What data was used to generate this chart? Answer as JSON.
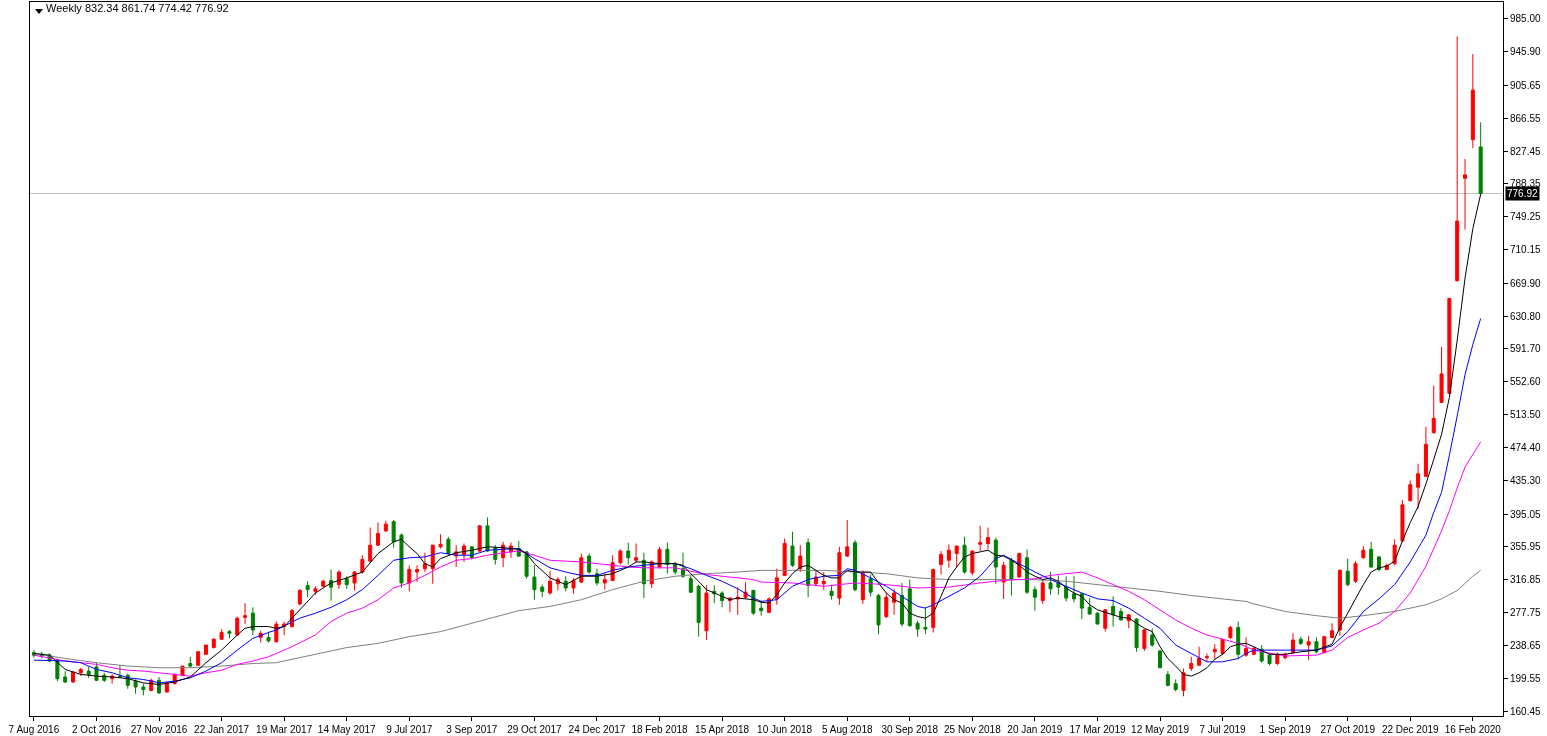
{
  "chart_data": {
    "type": "candlestick",
    "title": "Weekly 832.34 861.74 774.42 776.92",
    "x": [
      "2016-08-07",
      "2016-08-14",
      "2016-08-21",
      "2016-08-28",
      "2016-09-04",
      "2016-09-11",
      "2016-09-18",
      "2016-09-25",
      "2016-10-02",
      "2016-10-09",
      "2016-10-16",
      "2016-10-23",
      "2016-10-30",
      "2016-11-06",
      "2016-11-13",
      "2016-11-20",
      "2016-11-27",
      "2016-12-04",
      "2016-12-11",
      "2016-12-18",
      "2016-12-25",
      "2017-01-01",
      "2017-01-08",
      "2017-01-15",
      "2017-01-22",
      "2017-01-29",
      "2017-02-05",
      "2017-02-12",
      "2017-02-19",
      "2017-02-26",
      "2017-03-05",
      "2017-03-12",
      "2017-03-19",
      "2017-03-26",
      "2017-04-02",
      "2017-04-09",
      "2017-04-16",
      "2017-04-23",
      "2017-04-30",
      "2017-05-07",
      "2017-05-14",
      "2017-05-21",
      "2017-05-28",
      "2017-06-04",
      "2017-06-11",
      "2017-06-18",
      "2017-06-25",
      "2017-07-02",
      "2017-07-09",
      "2017-07-16",
      "2017-07-23",
      "2017-07-30",
      "2017-08-06",
      "2017-08-13",
      "2017-08-20",
      "2017-08-27",
      "2017-09-03",
      "2017-09-10",
      "2017-09-17",
      "2017-09-24",
      "2017-10-01",
      "2017-10-08",
      "2017-10-15",
      "2017-10-22",
      "2017-10-29",
      "2017-11-05",
      "2017-11-12",
      "2017-11-19",
      "2017-11-26",
      "2017-12-03",
      "2017-12-10",
      "2017-12-17",
      "2017-12-24",
      "2017-12-31",
      "2018-01-07",
      "2018-01-14",
      "2018-01-21",
      "2018-01-28",
      "2018-02-04",
      "2018-02-11",
      "2018-02-18",
      "2018-02-25",
      "2018-03-04",
      "2018-03-11",
      "2018-03-18",
      "2018-03-25",
      "2018-04-01",
      "2018-04-08",
      "2018-04-15",
      "2018-04-22",
      "2018-04-29",
      "2018-05-06",
      "2018-05-13",
      "2018-05-20",
      "2018-05-27",
      "2018-06-03",
      "2018-06-10",
      "2018-06-17",
      "2018-06-24",
      "2018-07-01",
      "2018-07-08",
      "2018-07-15",
      "2018-07-22",
      "2018-07-29",
      "2018-08-05",
      "2018-08-12",
      "2018-08-19",
      "2018-08-26",
      "2018-09-02",
      "2018-09-09",
      "2018-09-16",
      "2018-09-23",
      "2018-09-30",
      "2018-10-07",
      "2018-10-14",
      "2018-10-21",
      "2018-10-28",
      "2018-11-04",
      "2018-11-11",
      "2018-11-18",
      "2018-11-25",
      "2018-12-02",
      "2018-12-09",
      "2018-12-16",
      "2018-12-23",
      "2018-12-30",
      "2019-01-06",
      "2019-01-13",
      "2019-01-20",
      "2019-01-27",
      "2019-02-03",
      "2019-02-10",
      "2019-02-17",
      "2019-02-24",
      "2019-03-03",
      "2019-03-10",
      "2019-03-17",
      "2019-03-24",
      "2019-03-31",
      "2019-04-07",
      "2019-04-14",
      "2019-04-21",
      "2019-04-28",
      "2019-05-05",
      "2019-05-12",
      "2019-05-19",
      "2019-05-26",
      "2019-06-02",
      "2019-06-09",
      "2019-06-16",
      "2019-06-23",
      "2019-06-30",
      "2019-07-07",
      "2019-07-14",
      "2019-07-21",
      "2019-07-28",
      "2019-08-04",
      "2019-08-11",
      "2019-08-18",
      "2019-08-25",
      "2019-09-01",
      "2019-09-08",
      "2019-09-15",
      "2019-09-22",
      "2019-09-29",
      "2019-10-06",
      "2019-10-13",
      "2019-10-20",
      "2019-10-27",
      "2019-11-03",
      "2019-11-10",
      "2019-11-17",
      "2019-11-24",
      "2019-12-01",
      "2019-12-08",
      "2019-12-15",
      "2019-12-22",
      "2019-12-29",
      "2020-01-05",
      "2020-01-12",
      "2020-01-19",
      "2020-01-26",
      "2020-02-02",
      "2020-02-09",
      "2020-02-16",
      "2020-02-23"
    ],
    "ohlc": [
      [
        230,
        233,
        224,
        227
      ],
      [
        228,
        231,
        223,
        226
      ],
      [
        227,
        229,
        219,
        220
      ],
      [
        221,
        223,
        196,
        199
      ],
      [
        201,
        208,
        194,
        195
      ],
      [
        195,
        207,
        194,
        207
      ],
      [
        206,
        212,
        202,
        210
      ],
      [
        208,
        213,
        200,
        204
      ],
      [
        213,
        218,
        196,
        197
      ],
      [
        203,
        206,
        195,
        197
      ],
      [
        199,
        204,
        193,
        202
      ],
      [
        202,
        215,
        200,
        201
      ],
      [
        203,
        205,
        187,
        191
      ],
      [
        196,
        198,
        181,
        189
      ],
      [
        189,
        193,
        179,
        186
      ],
      [
        185,
        199,
        184,
        197
      ],
      [
        197,
        201,
        181,
        182
      ],
      [
        183,
        195,
        183,
        194
      ],
      [
        193,
        205,
        192,
        204
      ],
      [
        203,
        214,
        202,
        214
      ],
      [
        217,
        225,
        212,
        214
      ],
      [
        215,
        232,
        214,
        231
      ],
      [
        228,
        239,
        227,
        239
      ],
      [
        236,
        247,
        235,
        246
      ],
      [
        246,
        258,
        245,
        254
      ],
      [
        255,
        257,
        247,
        253
      ],
      [
        251,
        273,
        250,
        271
      ],
      [
        272,
        289,
        264,
        274
      ],
      [
        277,
        284,
        251,
        257
      ],
      [
        248,
        256,
        242,
        253
      ],
      [
        248,
        255,
        242,
        244
      ],
      [
        243,
        267,
        242,
        264
      ],
      [
        261,
        267,
        251,
        264
      ],
      [
        261,
        282,
        260,
        280
      ],
      [
        288,
        306,
        286,
        304
      ],
      [
        310,
        315,
        296,
        305
      ],
      [
        303,
        309,
        299,
        306
      ],
      [
        309,
        317,
        308,
        315
      ],
      [
        316,
        329,
        292,
        308
      ],
      [
        311,
        328,
        306,
        326
      ],
      [
        318,
        321,
        306,
        311
      ],
      [
        313,
        327,
        304,
        326
      ],
      [
        326,
        346,
        324,
        341
      ],
      [
        339,
        379,
        337,
        358
      ],
      [
        358,
        385,
        357,
        372
      ],
      [
        375,
        387,
        374,
        383
      ],
      [
        386,
        388,
        355,
        362
      ],
      [
        370,
        372,
        307,
        313
      ],
      [
        313,
        334,
        303,
        329
      ],
      [
        326,
        334,
        314,
        329
      ],
      [
        330,
        349,
        326,
        336
      ],
      [
        330,
        358,
        312,
        358
      ],
      [
        356,
        371,
        354,
        359
      ],
      [
        365,
        368,
        347,
        348
      ],
      [
        345,
        358,
        332,
        350
      ],
      [
        347,
        360,
        338,
        357
      ],
      [
        356,
        357,
        341,
        343
      ],
      [
        351,
        382,
        350,
        381
      ],
      [
        381,
        391,
        350,
        351
      ],
      [
        355,
        358,
        335,
        341
      ],
      [
        343,
        362,
        332,
        358
      ],
      [
        350,
        361,
        343,
        357
      ],
      [
        354,
        363,
        344,
        345
      ],
      [
        350,
        351,
        318,
        321
      ],
      [
        320,
        334,
        293,
        305
      ],
      [
        308,
        311,
        296,
        303
      ],
      [
        301,
        327,
        299,
        315
      ],
      [
        312,
        320,
        304,
        317
      ],
      [
        315,
        321,
        303,
        307
      ],
      [
        307,
        319,
        300,
        316
      ],
      [
        314,
        348,
        313,
        343
      ],
      [
        345,
        348,
        324,
        326
      ],
      [
        324,
        330,
        310,
        313
      ],
      [
        313,
        324,
        305,
        317
      ],
      [
        316,
        346,
        315,
        337
      ],
      [
        337,
        353,
        335,
        351
      ],
      [
        351,
        361,
        335,
        343
      ],
      [
        340,
        360,
        337,
        343
      ],
      [
        340,
        349,
        295,
        312
      ],
      [
        312,
        340,
        307,
        338
      ],
      [
        332,
        356,
        330,
        353
      ],
      [
        353,
        361,
        324,
        335
      ],
      [
        335,
        338,
        323,
        326
      ],
      [
        330,
        349,
        319,
        321
      ],
      [
        318,
        322,
        301,
        302
      ],
      [
        309,
        311,
        249,
        266
      ],
      [
        256,
        310,
        245,
        301
      ],
      [
        303,
        310,
        289,
        300
      ],
      [
        301,
        303,
        284,
        292
      ],
      [
        292,
        296,
        278,
        295
      ],
      [
        294,
        308,
        275,
        296
      ],
      [
        296,
        314,
        294,
        302
      ],
      [
        304,
        305,
        275,
        277
      ],
      [
        283,
        292,
        274,
        280
      ],
      [
        278,
        296,
        277,
        294
      ],
      [
        294,
        330,
        287,
        319
      ],
      [
        322,
        366,
        321,
        360
      ],
      [
        357,
        374,
        332,
        334
      ],
      [
        330,
        358,
        326,
        345
      ],
      [
        361,
        366,
        296,
        310
      ],
      [
        312,
        328,
        309,
        320
      ],
      [
        312,
        326,
        305,
        315
      ],
      [
        303,
        311,
        293,
        298
      ],
      [
        295,
        356,
        287,
        349
      ],
      [
        345,
        388,
        344,
        356
      ],
      [
        361,
        364,
        303,
        305
      ],
      [
        293,
        328,
        288,
        324
      ],
      [
        318,
        323,
        297,
        302
      ],
      [
        298,
        300,
        252,
        263
      ],
      [
        273,
        301,
        271,
        296
      ],
      [
        290,
        306,
        275,
        301
      ],
      [
        298,
        313,
        261,
        264
      ],
      [
        306,
        317,
        261,
        262
      ],
      [
        265,
        268,
        249,
        258
      ],
      [
        260,
        284,
        252,
        258
      ],
      [
        260,
        330,
        254,
        329
      ],
      [
        335,
        351,
        323,
        347
      ],
      [
        340,
        359,
        331,
        352
      ],
      [
        348,
        357,
        332,
        357
      ],
      [
        358,
        368,
        324,
        326
      ],
      [
        325,
        352,
        322,
        351
      ],
      [
        359,
        381,
        351,
        361
      ],
      [
        360,
        379,
        353,
        367
      ],
      [
        364,
        367,
        312,
        332
      ],
      [
        314,
        338,
        294,
        334
      ],
      [
        340,
        343,
        298,
        317
      ],
      [
        320,
        349,
        319,
        348
      ],
      [
        343,
        353,
        300,
        302
      ],
      [
        305,
        309,
        280,
        296
      ],
      [
        292,
        317,
        288,
        313
      ],
      [
        313,
        326,
        299,
        306
      ],
      [
        313,
        322,
        299,
        308
      ],
      [
        308,
        321,
        291,
        295
      ],
      [
        300,
        321,
        290,
        294
      ],
      [
        300,
        301,
        270,
        283
      ],
      [
        284,
        295,
        275,
        276
      ],
      [
        277,
        278,
        264,
        264
      ],
      [
        259,
        282,
        255,
        281
      ],
      [
        285,
        297,
        261,
        275
      ],
      [
        279,
        283,
        268,
        269
      ],
      [
        268,
        276,
        259,
        275
      ],
      [
        270,
        271,
        231,
        236
      ],
      [
        235,
        258,
        232,
        257
      ],
      [
        251,
        259,
        237,
        239
      ],
      [
        232,
        233,
        212,
        212
      ],
      [
        204,
        208,
        190,
        191
      ],
      [
        193,
        198,
        184,
        186
      ],
      [
        185,
        211,
        178,
        206
      ],
      [
        211,
        225,
        208,
        217
      ],
      [
        215,
        237,
        214,
        223
      ],
      [
        224,
        229,
        220,
        225
      ],
      [
        231,
        240,
        222,
        234
      ],
      [
        229,
        246,
        227,
        246
      ],
      [
        248,
        262,
        246,
        260
      ],
      [
        260,
        267,
        222,
        228
      ],
      [
        227,
        248,
        225,
        235
      ],
      [
        228,
        237,
        227,
        235
      ],
      [
        234,
        239,
        218,
        220
      ],
      [
        227,
        229,
        215,
        217
      ],
      [
        217,
        230,
        215,
        228
      ],
      [
        224,
        230,
        222,
        228
      ],
      [
        230,
        253,
        229,
        245
      ],
      [
        246,
        249,
        239,
        241
      ],
      [
        239,
        250,
        221,
        243
      ],
      [
        243,
        248,
        229,
        231
      ],
      [
        230,
        250,
        229,
        249
      ],
      [
        248,
        265,
        247,
        256
      ],
      [
        257,
        329,
        250,
        328
      ],
      [
        327,
        342,
        309,
        311
      ],
      [
        315,
        339,
        313,
        336
      ],
      [
        343,
        357,
        342,
        352
      ],
      [
        353,
        362,
        331,
        332
      ],
      [
        344,
        345,
        327,
        329
      ],
      [
        329,
        336,
        328,
        334
      ],
      [
        336,
        365,
        334,
        358
      ],
      [
        363,
        412,
        362,
        406
      ],
      [
        411,
        435,
        410,
        430
      ],
      [
        427,
        455,
        401,
        443
      ],
      [
        440,
        499,
        439,
        478
      ],
      [
        492,
        548,
        491,
        509
      ],
      [
        528,
        594,
        527,
        562
      ],
      [
        539,
        652,
        538,
        652
      ],
      [
        673,
        964,
        672,
        744
      ],
      [
        795,
        818,
        734,
        799
      ],
      [
        841,
        943,
        831,
        900
      ],
      [
        832.34,
        861.74,
        774.42,
        776.92
      ]
    ],
    "colors": [
      "#008000",
      "#008000",
      "#008000",
      "#008000",
      "#008000",
      "#ff0000",
      "#ff0000",
      "#008000",
      "#008000",
      "#008000",
      "#ff0000",
      "#008000",
      "#008000",
      "#008000",
      "#008000",
      "#ff0000",
      "#008000",
      "#ff0000",
      "#ff0000",
      "#ff0000",
      "#008000",
      "#ff0000",
      "#ff0000",
      "#ff0000",
      "#ff0000",
      "#008000",
      "#ff0000",
      "#ff0000",
      "#008000",
      "#ff0000",
      "#008000",
      "#ff0000",
      "#ff0000",
      "#ff0000",
      "#ff0000",
      "#008000",
      "#ff0000",
      "#ff0000",
      "#008000",
      "#ff0000",
      "#008000",
      "#ff0000",
      "#ff0000",
      "#ff0000",
      "#ff0000",
      "#ff0000",
      "#008000",
      "#008000",
      "#ff0000",
      "#ff0000",
      "#ff0000",
      "#ff0000",
      "#ff0000",
      "#008000",
      "#ff0000",
      "#ff0000",
      "#008000",
      "#ff0000",
      "#008000",
      "#008000",
      "#ff0000",
      "#ff0000",
      "#008000",
      "#008000",
      "#008000",
      "#008000",
      "#ff0000",
      "#ff0000",
      "#008000",
      "#ff0000",
      "#ff0000",
      "#008000",
      "#008000",
      "#ff0000",
      "#ff0000",
      "#ff0000",
      "#008000",
      "#ff0000",
      "#008000",
      "#ff0000",
      "#ff0000",
      "#008000",
      "#008000",
      "#008000",
      "#008000",
      "#008000",
      "#ff0000",
      "#008000",
      "#008000",
      "#ff0000",
      "#ff0000",
      "#ff0000",
      "#008000",
      "#008000",
      "#ff0000",
      "#ff0000",
      "#ff0000",
      "#008000",
      "#ff0000",
      "#008000",
      "#ff0000",
      "#ff0000",
      "#008000",
      "#ff0000",
      "#ff0000",
      "#008000",
      "#ff0000",
      "#008000",
      "#008000",
      "#ff0000",
      "#ff0000",
      "#008000",
      "#008000",
      "#008000",
      "#008000",
      "#ff0000",
      "#ff0000",
      "#ff0000",
      "#ff0000",
      "#008000",
      "#ff0000",
      "#ff0000",
      "#ff0000",
      "#008000",
      "#ff0000",
      "#008000",
      "#ff0000",
      "#008000",
      "#008000",
      "#ff0000",
      "#008000",
      "#008000",
      "#008000",
      "#008000",
      "#008000",
      "#008000",
      "#008000",
      "#ff0000",
      "#008000",
      "#008000",
      "#ff0000",
      "#008000",
      "#ff0000",
      "#008000",
      "#008000",
      "#008000",
      "#008000",
      "#ff0000",
      "#ff0000",
      "#ff0000",
      "#ff0000",
      "#ff0000",
      "#ff0000",
      "#ff0000",
      "#008000",
      "#ff0000",
      "#ff0000",
      "#008000",
      "#008000",
      "#ff0000",
      "#ff0000",
      "#ff0000",
      "#008000",
      "#ff0000",
      "#008000",
      "#ff0000",
      "#ff0000",
      "#ff0000",
      "#008000",
      "#ff0000",
      "#ff0000",
      "#008000",
      "#008000",
      "#ff0000",
      "#ff0000",
      "#ff0000",
      "#ff0000",
      "#ff0000",
      "#ff0000",
      "#ff0000",
      "#ff0000",
      "#ff0000",
      "#ff0000",
      "#ff0000",
      "#ff0000",
      "#008000"
    ],
    "series": [
      {
        "type": "line",
        "color": "#808080",
        "x": [
          "2016-08-07",
          "2016-09-04",
          "2016-10-02",
          "2016-10-30",
          "2016-11-27",
          "2016-12-25",
          "2017-01-22",
          "2017-02-19",
          "2017-03-12",
          "2017-04-09",
          "2017-05-14",
          "2017-06-11",
          "2017-07-09",
          "2017-08-06",
          "2017-09-03",
          "2017-10-15",
          "2017-11-12",
          "2017-12-10",
          "2018-01-07",
          "2018-02-04",
          "2018-03-04",
          "2018-04-01",
          "2018-04-29",
          "2018-05-20",
          "2018-06-17",
          "2018-07-15",
          "2018-08-12",
          "2018-09-09",
          "2018-10-07",
          "2018-11-04",
          "2018-12-02",
          "2018-12-23",
          "2019-01-20",
          "2019-02-17",
          "2019-03-17",
          "2019-04-14",
          "2019-05-12",
          "2019-06-09",
          "2019-07-07",
          "2019-07-28",
          "2019-08-04",
          "2019-09-01",
          "2019-09-29",
          "2019-10-20",
          "2019-11-10",
          "2019-12-08",
          "2020-01-05",
          "2020-01-19",
          "2020-02-02",
          "2020-02-16",
          "2020-02-23"
        ],
        "values": [
          229,
          223,
          218,
          214,
          212,
          212,
          214,
          217,
          218,
          226,
          236,
          241,
          249,
          255,
          265,
          280,
          285,
          293,
          305,
          315,
          321,
          324,
          326,
          328,
          328,
          328,
          326,
          324,
          319,
          317,
          317,
          317,
          317,
          315,
          311,
          307,
          303,
          298,
          294,
          291,
          288,
          279,
          274,
          271,
          274,
          279,
          287,
          294,
          304,
          321,
          328
        ]
      },
      {
        "type": "line",
        "color": "#ff00ff",
        "x": [
          "2016-08-07",
          "2016-09-04",
          "2016-09-18",
          "2016-10-02",
          "2016-10-16",
          "2016-10-30",
          "2016-11-13",
          "2016-11-27",
          "2016-12-11",
          "2016-12-25",
          "2017-01-08",
          "2017-01-22",
          "2017-02-05",
          "2017-02-19",
          "2017-03-05",
          "2017-03-12",
          "2017-03-26",
          "2017-04-16",
          "2017-04-30",
          "2017-05-14",
          "2017-05-28",
          "2017-06-11",
          "2017-06-25",
          "2017-07-09",
          "2017-07-23",
          "2017-08-06",
          "2017-08-20",
          "2017-09-03",
          "2017-09-17",
          "2017-10-01",
          "2017-10-15",
          "2017-10-29",
          "2017-11-12",
          "2017-11-26",
          "2017-12-10",
          "2017-12-24",
          "2018-01-07",
          "2018-01-21",
          "2018-02-04",
          "2018-02-18",
          "2018-03-04",
          "2018-03-18",
          "2018-04-01",
          "2018-04-15",
          "2018-04-29",
          "2018-05-13",
          "2018-05-20",
          "2018-06-17",
          "2018-07-15",
          "2018-08-12",
          "2018-09-09",
          "2018-10-07",
          "2018-11-04",
          "2018-12-02",
          "2018-12-23",
          "2019-01-06",
          "2019-01-20",
          "2019-02-03",
          "2019-02-17",
          "2019-03-03",
          "2019-03-17",
          "2019-03-31",
          "2019-04-14",
          "2019-04-28",
          "2019-05-12",
          "2019-05-26",
          "2019-06-09",
          "2019-06-23",
          "2019-07-07",
          "2019-07-21",
          "2019-07-28",
          "2019-08-04",
          "2019-09-01",
          "2019-09-29",
          "2019-10-13",
          "2019-10-27",
          "2019-11-10",
          "2019-11-24",
          "2019-12-08",
          "2019-12-22",
          "2020-01-05",
          "2020-01-19",
          "2020-01-26",
          "2020-02-02",
          "2020-02-09",
          "2020-02-16",
          "2020-02-23"
        ],
        "values": [
          227,
          220,
          218,
          216,
          212,
          209,
          208,
          206,
          204,
          202,
          206,
          209,
          216,
          220,
          225,
          229,
          237,
          251,
          267,
          277,
          283,
          293,
          307,
          313,
          322,
          332,
          340,
          342,
          346,
          349,
          351,
          346,
          340,
          339,
          338,
          336,
          334,
          332,
          331,
          331,
          331,
          327,
          323,
          321,
          319,
          317,
          314,
          313,
          309,
          313,
          311,
          307,
          308,
          313,
          316,
          317,
          318,
          322,
          324,
          326,
          319,
          311,
          303,
          293,
          281,
          269,
          259,
          251,
          246,
          241,
          237,
          233,
          226,
          227,
          233,
          248,
          257,
          265,
          279,
          301,
          333,
          375,
          399,
          426,
          451,
          466,
          481
        ]
      },
      {
        "type": "line",
        "color": "#0000ff",
        "x": [
          "2016-08-07",
          "2016-09-04",
          "2016-09-18",
          "2016-10-02",
          "2016-10-16",
          "2016-10-30",
          "2016-11-13",
          "2016-11-27",
          "2016-12-11",
          "2016-12-25",
          "2017-01-08",
          "2017-01-22",
          "2017-02-05",
          "2017-02-19",
          "2017-03-05",
          "2017-03-12",
          "2017-04-02",
          "2017-04-16",
          "2017-04-30",
          "2017-05-14",
          "2017-05-28",
          "2017-06-11",
          "2017-06-25",
          "2017-07-09",
          "2017-07-23",
          "2017-08-06",
          "2017-08-20",
          "2017-09-03",
          "2017-09-17",
          "2017-10-01",
          "2017-10-15",
          "2017-10-29",
          "2017-11-12",
          "2017-11-26",
          "2017-12-10",
          "2017-12-24",
          "2018-01-07",
          "2018-01-21",
          "2018-02-04",
          "2018-02-18",
          "2018-03-04",
          "2018-03-18",
          "2018-04-01",
          "2018-04-15",
          "2018-04-29",
          "2018-05-13",
          "2018-05-20",
          "2018-06-03",
          "2018-06-17",
          "2018-07-01",
          "2018-07-15",
          "2018-07-29",
          "2018-08-05",
          "2018-08-12",
          "2018-08-26",
          "2018-09-09",
          "2018-09-23",
          "2018-10-07",
          "2018-10-14",
          "2018-10-21",
          "2018-11-04",
          "2018-11-18",
          "2018-12-02",
          "2018-12-16",
          "2018-12-23",
          "2019-01-06",
          "2019-01-20",
          "2019-02-03",
          "2019-02-17",
          "2019-03-03",
          "2019-03-17",
          "2019-03-31",
          "2019-04-14",
          "2019-04-28",
          "2019-05-12",
          "2019-05-26",
          "2019-06-09",
          "2019-06-23",
          "2019-07-07",
          "2019-07-21",
          "2019-07-28",
          "2019-08-04",
          "2019-09-01",
          "2019-09-29",
          "2019-10-13",
          "2019-10-27",
          "2019-11-10",
          "2019-11-24",
          "2019-12-08",
          "2019-12-22",
          "2020-01-05",
          "2020-01-12",
          "2020-01-19",
          "2020-01-26",
          "2020-02-02",
          "2020-02-09",
          "2020-02-16",
          "2020-02-23"
        ],
        "values": [
          221,
          220,
          218,
          210,
          206,
          200,
          198,
          194,
          196,
          200,
          208,
          218,
          233,
          247,
          254,
          257,
          271,
          277,
          284,
          293,
          305,
          322,
          340,
          343,
          344,
          349,
          346,
          346,
          352,
          353,
          354,
          342,
          331,
          326,
          322,
          322,
          328,
          332,
          334,
          336,
          336,
          330,
          322,
          315,
          306,
          295,
          291,
          293,
          309,
          317,
          321,
          322,
          330,
          328,
          319,
          309,
          297,
          285,
          283,
          287,
          297,
          307,
          321,
          342,
          346,
          336,
          326,
          317,
          309,
          301,
          294,
          292,
          283,
          271,
          259,
          239,
          229,
          219,
          219,
          223,
          229,
          233,
          233,
          233,
          238,
          255,
          279,
          294,
          311,
          338,
          370,
          397,
          421,
          465,
          512,
          561,
          597,
          628
        ]
      },
      {
        "type": "line",
        "color": "#000000",
        "x": [
          "2016-08-07",
          "2016-08-21",
          "2016-09-04",
          "2016-09-18",
          "2016-10-02",
          "2016-10-16",
          "2016-10-30",
          "2016-11-13",
          "2016-11-27",
          "2016-12-11",
          "2016-12-25",
          "2017-01-08",
          "2017-01-22",
          "2017-02-05",
          "2017-02-12",
          "2017-02-19",
          "2017-03-05",
          "2017-03-12",
          "2017-03-19",
          "2017-04-02",
          "2017-04-16",
          "2017-04-30",
          "2017-05-14",
          "2017-05-28",
          "2017-06-11",
          "2017-06-25",
          "2017-07-02",
          "2017-07-09",
          "2017-07-16",
          "2017-07-23",
          "2017-07-30",
          "2017-08-06",
          "2017-08-20",
          "2017-09-03",
          "2017-09-17",
          "2017-10-01",
          "2017-10-15",
          "2017-10-22",
          "2017-10-29",
          "2017-11-12",
          "2017-11-26",
          "2017-12-10",
          "2017-12-24",
          "2018-01-07",
          "2018-01-21",
          "2018-01-28",
          "2018-02-04",
          "2018-02-18",
          "2018-03-04",
          "2018-03-11",
          "2018-03-18",
          "2018-03-25",
          "2018-04-01",
          "2018-04-15",
          "2018-04-22",
          "2018-04-29",
          "2018-05-13",
          "2018-05-20",
          "2018-05-27",
          "2018-06-03",
          "2018-06-10",
          "2018-06-17",
          "2018-06-24",
          "2018-07-01",
          "2018-07-08",
          "2018-07-15",
          "2018-07-22",
          "2018-07-29",
          "2018-08-05",
          "2018-08-12",
          "2018-08-19",
          "2018-08-26",
          "2018-09-02",
          "2018-09-09",
          "2018-09-16",
          "2018-09-23",
          "2018-09-30",
          "2018-10-07",
          "2018-10-14",
          "2018-10-21",
          "2018-10-28",
          "2018-11-04",
          "2018-11-11",
          "2018-11-18",
          "2018-11-25",
          "2018-12-02",
          "2018-12-09",
          "2018-12-16",
          "2018-12-23",
          "2018-12-30",
          "2019-01-06",
          "2019-01-13",
          "2019-01-20",
          "2019-01-27",
          "2019-02-03",
          "2019-02-10",
          "2019-02-17",
          "2019-02-24",
          "2019-03-03",
          "2019-03-10",
          "2019-03-17",
          "2019-03-24",
          "2019-03-31",
          "2019-04-07",
          "2019-04-14",
          "2019-04-21",
          "2019-04-28",
          "2019-05-05",
          "2019-05-12",
          "2019-05-19",
          "2019-05-26",
          "2019-06-02",
          "2019-06-09",
          "2019-06-16",
          "2019-06-23",
          "2019-06-30",
          "2019-07-07",
          "2019-07-14",
          "2019-07-21",
          "2019-07-28",
          "2019-08-04",
          "2019-08-18",
          "2019-09-01",
          "2019-09-15",
          "2019-09-29",
          "2019-10-13",
          "2019-10-20",
          "2019-10-27",
          "2019-11-03",
          "2019-11-10",
          "2019-11-17",
          "2019-11-24",
          "2019-12-01",
          "2019-12-08",
          "2019-12-15",
          "2019-12-22",
          "2019-12-29",
          "2020-01-05",
          "2020-01-12",
          "2020-01-19",
          "2020-01-26",
          "2020-02-02",
          "2020-02-09",
          "2020-02-16",
          "2020-02-23"
        ],
        "values": [
          229,
          227,
          210,
          204,
          202,
          201,
          199,
          194,
          192,
          195,
          201,
          218,
          233,
          251,
          259,
          261,
          261,
          259,
          261,
          281,
          301,
          313,
          319,
          326,
          348,
          362,
          365,
          356,
          348,
          336,
          332,
          342,
          349,
          352,
          356,
          355,
          353,
          348,
          336,
          319,
          311,
          321,
          321,
          324,
          332,
          338,
          338,
          336,
          336,
          334,
          324,
          315,
          305,
          297,
          293,
          295,
          293,
          290,
          289,
          299,
          313,
          324,
          332,
          334,
          328,
          322,
          319,
          319,
          328,
          326,
          326,
          326,
          313,
          301,
          293,
          289,
          277,
          273,
          271,
          277,
          297,
          319,
          332,
          344,
          348,
          350,
          352,
          346,
          345,
          340,
          334,
          326,
          321,
          317,
          319,
          315,
          307,
          301,
          297,
          287,
          281,
          278,
          275,
          272,
          271,
          265,
          259,
          255,
          237,
          223,
          214,
          204,
          202,
          206,
          212,
          222,
          228,
          237,
          240,
          241,
          237,
          228,
          228,
          231,
          233,
          240,
          260,
          277,
          294,
          311,
          326,
          331,
          333,
          339,
          363,
          385,
          404,
          431,
          460,
          490,
          534,
          602,
          676,
          735,
          776
        ]
      }
    ],
    "xlim": [
      "2016-08-03T12:00",
      "2020-03-14"
    ],
    "xticks": [
      {
        "value": "2016-08-07",
        "label": "7 Aug 2016"
      },
      {
        "value": "2016-10-02",
        "label": "2 Oct 2016"
      },
      {
        "value": "2016-11-27",
        "label": "27 Nov 2016"
      },
      {
        "value": "2017-01-22",
        "label": "22 Jan 2017"
      },
      {
        "value": "2017-03-19",
        "label": "19 Mar 2017"
      },
      {
        "value": "2017-05-14",
        "label": "14 May 2017"
      },
      {
        "value": "2017-07-09",
        "label": "9 Jul 2017"
      },
      {
        "value": "2017-09-03",
        "label": "3 Sep 2017"
      },
      {
        "value": "2017-10-29",
        "label": "29 Oct 2017"
      },
      {
        "value": "2017-12-24",
        "label": "24 Dec 2017"
      },
      {
        "value": "2018-02-18",
        "label": "18 Feb 2018"
      },
      {
        "value": "2018-04-15",
        "label": "15 Apr 2018"
      },
      {
        "value": "2018-06-10",
        "label": "10 Jun 2018"
      },
      {
        "value": "2018-08-05",
        "label": "5 Aug 2018"
      },
      {
        "value": "2018-09-30",
        "label": "30 Sep 2018"
      },
      {
        "value": "2018-11-25",
        "label": "25 Nov 2018"
      },
      {
        "value": "2019-01-20",
        "label": "20 Jan 2019"
      },
      {
        "value": "2019-03-17",
        "label": "17 Mar 2019"
      },
      {
        "value": "2019-05-12",
        "label": "12 May 2019"
      },
      {
        "value": "2019-07-07",
        "label": "7 Jul 2019"
      },
      {
        "value": "2019-09-01",
        "label": "1 Sep 2019"
      },
      {
        "value": "2019-10-27",
        "label": "27 Oct 2019"
      },
      {
        "value": "2019-12-22",
        "label": "22 Dec 2019"
      },
      {
        "value": "2020-02-16",
        "label": "16 Feb 2020"
      }
    ],
    "ylim": [
      154.5,
      1005
    ],
    "yticks": [
      {
        "value": 985,
        "label": "985.00"
      },
      {
        "value": 945.9,
        "label": "945.90"
      },
      {
        "value": 905.65,
        "label": "905.65"
      },
      {
        "value": 866.55,
        "label": "866.55"
      },
      {
        "value": 827.45,
        "label": "827.45"
      },
      {
        "value": 788.35,
        "label": "788.35"
      },
      {
        "value": 749.25,
        "label": "749.25"
      },
      {
        "value": 710.15,
        "label": "710.15"
      },
      {
        "value": 669.9,
        "label": "669.90"
      },
      {
        "value": 630.8,
        "label": "630.80"
      },
      {
        "value": 591.7,
        "label": "591.70"
      },
      {
        "value": 552.6,
        "label": "552.60"
      },
      {
        "value": 513.5,
        "label": "513.50"
      },
      {
        "value": 474.4,
        "label": "474.40"
      },
      {
        "value": 435.3,
        "label": "435.30"
      },
      {
        "value": 395.05,
        "label": "395.05"
      },
      {
        "value": 355.95,
        "label": "355.95"
      },
      {
        "value": 316.85,
        "label": "316.85"
      },
      {
        "value": 277.75,
        "label": "277.75"
      },
      {
        "value": 238.65,
        "label": "238.65"
      },
      {
        "value": 199.55,
        "label": "199.55"
      },
      {
        "value": 160.45,
        "label": "160.45"
      }
    ],
    "ref_lines": [
      {
        "axis": "y",
        "value": 776.92,
        "label": "776.92",
        "color": "#c0c0c0"
      }
    ]
  }
}
